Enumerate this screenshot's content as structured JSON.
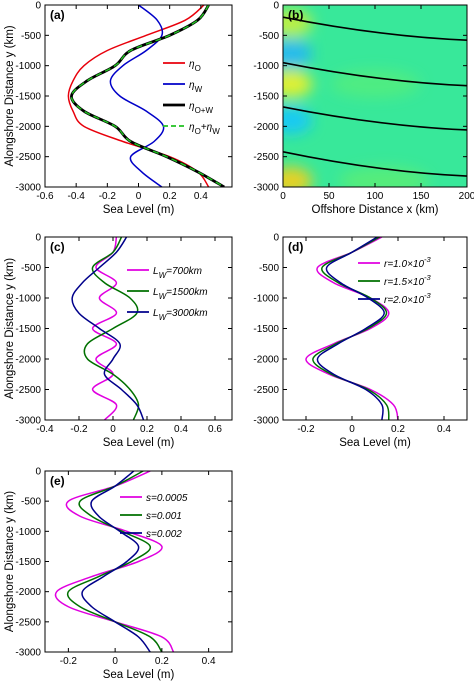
{
  "chart_data": [
    {
      "panel": "(a)",
      "type": "line",
      "xlabel": "Sea Level (m)",
      "ylabel": "Alongshore Distance y (km)",
      "xlim": [
        -0.6,
        0.6
      ],
      "ylim": [
        -3000,
        0
      ],
      "xticks": [
        "-0.6",
        "-0.4",
        "-0.2",
        "0",
        "0.2",
        "0.4"
      ],
      "yticks": [
        "0",
        "-500",
        "-1000",
        "-1500",
        "-2000",
        "-2500",
        "-3000"
      ],
      "legend_position": "right",
      "y": [
        0,
        -250,
        -500,
        -750,
        -1000,
        -1250,
        -1500,
        -1750,
        -2000,
        -2250,
        -2500,
        -2750,
        -3000
      ],
      "series": [
        {
          "name": "η_O",
          "sub": "O",
          "color": "#e8000b",
          "dash": "",
          "values": [
            0.42,
            0.3,
            0.05,
            -0.2,
            -0.35,
            -0.42,
            -0.45,
            -0.42,
            -0.35,
            -0.1,
            0.2,
            0.38,
            0.45
          ]
        },
        {
          "name": "η_W",
          "sub": "W",
          "color": "#0000c8",
          "dash": "",
          "values": [
            0.0,
            0.12,
            0.15,
            0.05,
            -0.1,
            -0.18,
            -0.12,
            0.05,
            0.16,
            0.1,
            -0.05,
            0.02,
            0.15
          ]
        },
        {
          "name": "η_O+W",
          "sub": "O+W",
          "color": "#000000",
          "dash": "",
          "width": 2.8,
          "values": [
            0.45,
            0.38,
            0.2,
            -0.05,
            -0.15,
            -0.33,
            -0.43,
            -0.35,
            -0.15,
            -0.05,
            0.18,
            0.38,
            0.55
          ]
        },
        {
          "name": "η_O+η_W",
          "sub": "O",
          "sub2": "W",
          "color": "#20c020",
          "dash": "6 4",
          "values": [
            0.45,
            0.38,
            0.2,
            -0.05,
            -0.15,
            -0.33,
            -0.43,
            -0.35,
            -0.15,
            -0.05,
            0.18,
            0.38,
            0.55
          ]
        }
      ]
    },
    {
      "panel": "(b)",
      "type": "heatmap",
      "xlabel": "Offshore Distance x (km)",
      "ylabel": "",
      "xlim": [
        0,
        200
      ],
      "ylim": [
        -3000,
        0
      ],
      "xticks": [
        "0",
        "50",
        "100",
        "150",
        "200"
      ],
      "yticks": [
        "0",
        "-500",
        "-1000",
        "-1500",
        "-2000",
        "-2500",
        "-3000"
      ],
      "background_color": "#38e89a",
      "blobs": [
        {
          "x": 8,
          "y": -300,
          "color": "#c0f040"
        },
        {
          "x": 8,
          "y": -1300,
          "color": "#e8f030"
        },
        {
          "x": 8,
          "y": -2900,
          "color": "#f0d020"
        },
        {
          "x": 8,
          "y": -800,
          "color": "#28b8f0"
        },
        {
          "x": 8,
          "y": -1900,
          "color": "#18c8f8"
        },
        {
          "x": 100,
          "y": -1300,
          "color": "#60f070"
        },
        {
          "x": 110,
          "y": -2900,
          "color": "#70f060"
        }
      ],
      "contour_lines": [
        {
          "y_at_x0": -200,
          "y_at_xmax": -580
        },
        {
          "y_at_x0": -950,
          "y_at_xmax": -1330
        },
        {
          "y_at_x0": -1680,
          "y_at_xmax": -2060
        },
        {
          "y_at_x0": -2420,
          "y_at_xmax": -2820
        }
      ]
    },
    {
      "panel": "(c)",
      "type": "line",
      "xlabel": "Sea Level (m)",
      "ylabel": "Alongshore Distance y (km)",
      "xlim": [
        -0.4,
        0.7
      ],
      "ylim": [
        -3000,
        0
      ],
      "xticks": [
        "-0.4",
        "-0.2",
        "0",
        "0.2",
        "0.4",
        "0.6"
      ],
      "yticks": [
        "0",
        "-500",
        "-1000",
        "-1500",
        "-2000",
        "-2500",
        "-3000"
      ],
      "legend_position": "top-right",
      "y": [
        0,
        -250,
        -500,
        -750,
        -1000,
        -1250,
        -1500,
        -1750,
        -2000,
        -2250,
        -2500,
        -2750,
        -3000
      ],
      "series": [
        {
          "name": "L_W=700km",
          "prefix": "L",
          "sub": "W",
          "suffix": "=700km",
          "color": "#e000e0",
          "values": [
            0.02,
            0.0,
            -0.1,
            0.02,
            -0.08,
            0.02,
            -0.12,
            0.02,
            -0.1,
            0.0,
            -0.12,
            0.02,
            -0.05
          ]
        },
        {
          "name": "L_W=1500km",
          "prefix": "L",
          "sub": "W",
          "suffix": "=1500km",
          "color": "#007000",
          "values": [
            0.05,
            0.0,
            -0.12,
            -0.05,
            0.1,
            0.14,
            0.0,
            -0.15,
            -0.15,
            0.0,
            0.1,
            0.15,
            0.12
          ]
        },
        {
          "name": "L_W=3000km",
          "prefix": "L",
          "sub": "W",
          "suffix": "=3000km",
          "color": "#00008b",
          "values": [
            0.08,
            0.02,
            -0.08,
            -0.18,
            -0.24,
            -0.2,
            -0.08,
            0.04,
            0.0,
            -0.05,
            0.05,
            0.14,
            0.18
          ]
        }
      ]
    },
    {
      "panel": "(d)",
      "type": "line",
      "xlabel": "Sea Level (m)",
      "ylabel": "",
      "xlim": [
        -0.3,
        0.5
      ],
      "ylim": [
        -3000,
        0
      ],
      "xticks": [
        "-0.2",
        "0",
        "0.2",
        "0.4"
      ],
      "yticks": [
        "0",
        "-500",
        "-1000",
        "-1500",
        "-2000",
        "-2500",
        "-3000"
      ],
      "legend_position": "top-right",
      "y": [
        0,
        -250,
        -500,
        -750,
        -1000,
        -1250,
        -1500,
        -1750,
        -2000,
        -2250,
        -2500,
        -2750,
        -3000
      ],
      "series": [
        {
          "name": "r=1.0×10^-3",
          "coef": "1.0",
          "color": "#e000e0",
          "values": [
            0.13,
            0.0,
            -0.15,
            -0.08,
            0.08,
            0.16,
            0.08,
            -0.08,
            -0.2,
            -0.1,
            0.08,
            0.18,
            0.2
          ]
        },
        {
          "name": "r=1.5×10^-3",
          "coef": "1.5",
          "color": "#007000",
          "values": [
            0.12,
            0.0,
            -0.13,
            -0.06,
            0.08,
            0.15,
            0.07,
            -0.07,
            -0.17,
            -0.09,
            0.07,
            0.15,
            0.16
          ]
        },
        {
          "name": "r=2.0×10^-3",
          "coef": "2.0",
          "color": "#00008b",
          "values": [
            0.11,
            0.0,
            -0.11,
            -0.05,
            0.07,
            0.14,
            0.06,
            -0.06,
            -0.15,
            -0.08,
            0.06,
            0.13,
            0.13
          ]
        }
      ]
    },
    {
      "panel": "(e)",
      "type": "line",
      "xlabel": "Sea Level (m)",
      "ylabel": "Alongshore Distance y (km)",
      "xlim": [
        -0.3,
        0.5
      ],
      "ylim": [
        -3000,
        0
      ],
      "xticks": [
        "-0.2",
        "0",
        "0.2",
        "0.4"
      ],
      "yticks": [
        "0",
        "-500",
        "-1000",
        "-1500",
        "-2000",
        "-2500",
        "-3000"
      ],
      "legend_position": "top-right",
      "y": [
        0,
        -250,
        -500,
        -750,
        -1000,
        -1250,
        -1500,
        -1750,
        -2000,
        -2250,
        -2500,
        -2750,
        -3000
      ],
      "series": [
        {
          "name": "s=0.0005",
          "color": "#e000e0",
          "values": [
            0.15,
            0.0,
            -0.2,
            -0.15,
            0.05,
            0.2,
            0.1,
            -0.1,
            -0.25,
            -0.2,
            0.0,
            0.2,
            0.25
          ]
        },
        {
          "name": "s=0.001",
          "color": "#007000",
          "values": [
            0.12,
            0.0,
            -0.15,
            -0.1,
            0.03,
            0.15,
            0.07,
            -0.07,
            -0.2,
            -0.15,
            0.0,
            0.15,
            0.2
          ]
        },
        {
          "name": "s=0.002",
          "color": "#00008b",
          "values": [
            0.08,
            0.0,
            -0.1,
            -0.07,
            0.02,
            0.1,
            0.05,
            -0.05,
            -0.14,
            -0.1,
            0.0,
            0.1,
            0.15
          ]
        }
      ]
    }
  ]
}
